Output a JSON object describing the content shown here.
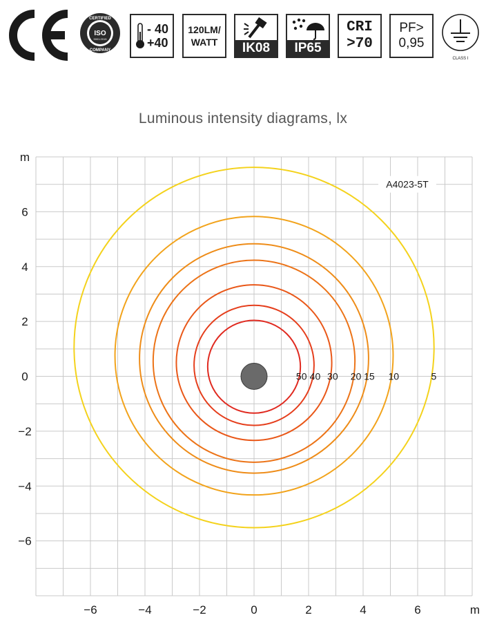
{
  "badges": {
    "ce_mark": "CE",
    "iso": {
      "top": "CERTIFIED",
      "center": "ISO",
      "code": "9001:2015",
      "bottom": "COMPANY"
    },
    "temperature": {
      "min": "- 40",
      "max": "+40"
    },
    "efficacy": {
      "line1": "120LM/",
      "line2": "WATT"
    },
    "impact": "IK08",
    "ingress": "IP65",
    "cri": {
      "line1": "CRI",
      "line2": ">70"
    },
    "power_factor": {
      "line1": "PF>",
      "line2": "0,95"
    },
    "class": "CLASS I"
  },
  "title": "Luminous intensity diagrams, lx",
  "chart_data": {
    "type": "isolux",
    "title": "Luminous intensity diagrams, lx",
    "model": "A4023-5T",
    "x_unit": "m",
    "y_unit": "m",
    "xlim": [
      -8,
      8
    ],
    "ylim": [
      -8,
      8
    ],
    "x_ticks": [
      "−6",
      "−4",
      "−2",
      "0",
      "2",
      "4",
      "6"
    ],
    "y_ticks": [
      "6",
      "4",
      "2",
      "0",
      "−2",
      "−4",
      "−6"
    ],
    "grid": true,
    "luminaire": {
      "x": 0,
      "y": 0
    },
    "series": [
      {
        "lux": "5",
        "center": [
          0,
          1.05
        ],
        "radius": 6.6,
        "color": "#f4d21c"
      },
      {
        "lux": "10",
        "center": [
          0,
          0.75
        ],
        "radius": 5.1,
        "color": "#f2a31b"
      },
      {
        "lux": "15",
        "center": [
          0,
          0.65
        ],
        "radius": 4.2,
        "color": "#ee8c18"
      },
      {
        "lux": "20",
        "center": [
          0,
          0.55
        ],
        "radius": 3.7,
        "color": "#ec7317"
      },
      {
        "lux": "30",
        "center": [
          0,
          0.5
        ],
        "radius": 2.85,
        "color": "#e95718"
      },
      {
        "lux": "40",
        "center": [
          0,
          0.4
        ],
        "radius": 2.2,
        "color": "#e53e1c"
      },
      {
        "lux": "50",
        "center": [
          0,
          0.35
        ],
        "radius": 1.7,
        "color": "#e02a20"
      }
    ]
  }
}
